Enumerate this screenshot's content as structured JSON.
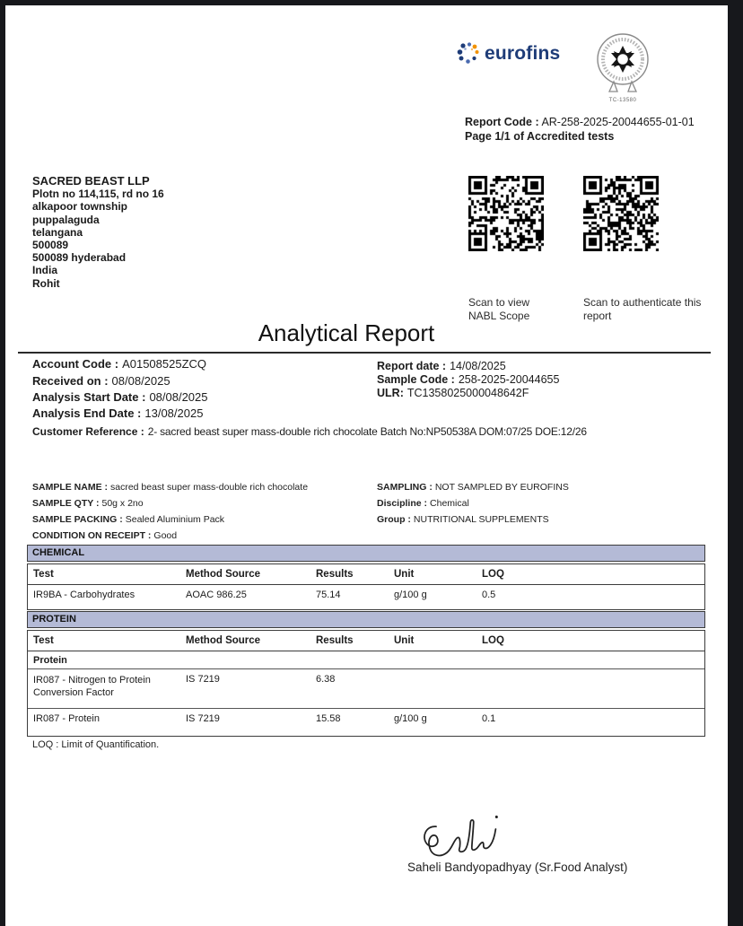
{
  "brand": {
    "logo_text": "eurofins",
    "accreditation_code": "TC-13580",
    "logo_blue": "#1e3c78",
    "logo_orange": "#f29200"
  },
  "header": {
    "report_code_label": "Report Code :",
    "report_code_value": "AR-258-2025-20044655-01-01",
    "page_info": "Page 1/1 of Accredited tests"
  },
  "customer": {
    "name": "SACRED BEAST LLP",
    "address_lines": [
      "Plotn no 114,115, rd no 16",
      "alkapoor township",
      "puppalaguda",
      "telangana",
      "500089",
      "500089 hyderabad",
      "India",
      "Rohit"
    ]
  },
  "qr": {
    "left_caption": "Scan to view NABL Scope",
    "right_caption": "Scan to authenticate this report"
  },
  "title": "Analytical Report",
  "meta": {
    "left": [
      {
        "label": "Account Code :",
        "value": "A01508525ZCQ"
      },
      {
        "label": "Received on :",
        "value": "08/08/2025"
      },
      {
        "label": "Analysis Start Date :",
        "value": "08/08/2025"
      },
      {
        "label": "Analysis End Date :",
        "value": "13/08/2025"
      }
    ],
    "right": [
      {
        "label": "Report date :",
        "value": "14/08/2025"
      },
      {
        "label": "Sample Code :",
        "value": "258-2025-20044655"
      },
      {
        "label": "ULR:",
        "value": "TC1358025000048642F"
      }
    ]
  },
  "customer_reference": {
    "label": "Customer Reference :",
    "value": "2- sacred beast super mass-double rich chocolate Batch No:NP50538A DOM:07/25 DOE:12/26"
  },
  "sample": {
    "left": [
      {
        "label": "SAMPLE NAME :",
        "value": "sacred beast super mass-double rich chocolate"
      },
      {
        "label": "SAMPLE QTY :",
        "value": "50g x 2no"
      },
      {
        "label": "SAMPLE PACKING :",
        "value": "Sealed Aluminium Pack"
      },
      {
        "label": "CONDITION ON RECEIPT :",
        "value": "Good"
      }
    ],
    "right": [
      {
        "label": "SAMPLING :",
        "value": "NOT SAMPLED BY EUROFINS"
      },
      {
        "label": "Discipline :",
        "value": "Chemical"
      },
      {
        "label": "Group :",
        "value": "NUTRITIONAL SUPPLEMENTS"
      }
    ]
  },
  "tables": [
    {
      "section": "CHEMICAL",
      "columns": [
        "Test",
        "Method Source",
        "Results",
        "Unit",
        "LOQ"
      ],
      "rows": [
        [
          "IR9BA - Carbohydrates",
          "AOAC 986.25",
          "75.14",
          "g/100 g",
          "0.5"
        ]
      ]
    },
    {
      "section": "PROTEIN",
      "columns": [
        "Test",
        "Method Source",
        "Results",
        "Unit",
        "LOQ"
      ],
      "group": "Protein",
      "rows": [
        [
          "IR087 - Nitrogen to Protein Conversion Factor",
          "IS 7219",
          "6.38",
          "",
          ""
        ],
        [
          "IR087 - Protein",
          "IS 7219",
          "15.58",
          "g/100 g",
          "0.1"
        ]
      ]
    }
  ],
  "footnote": "LOQ : Limit of Quantification.",
  "signature": {
    "analyst": "Saheli Bandyopadhyay (Sr.Food Analyst)"
  },
  "colors": {
    "section_bar": "#b4bad6",
    "frame": "#17181c"
  }
}
